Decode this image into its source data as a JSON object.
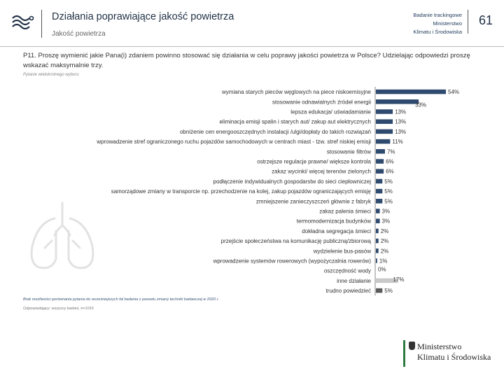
{
  "header": {
    "title": "Działania poprawiające jakość powietrza",
    "subtitle": "Jakość powietrza",
    "project_line1": "Badanie trackingowe",
    "project_line2": "Ministerstwo",
    "project_line3": "Klimatu i Środowiska",
    "page_number": "61"
  },
  "question": {
    "text": "P11. Proszę wymienić jakie Pana(i) zdaniem powinno stosować się działania w celu poprawy jakości powietrza w Polsce? Udzielając odpowiedzi proszę wskazać maksymalnie trzy.",
    "note": "Pytanie wielokrotnego wyboru"
  },
  "chart_data": {
    "type": "bar",
    "orientation": "horizontal",
    "categories": [
      "wymiana starych pieców węglowych na piece niskoemisyjne",
      "stosowanie odnawialnych źródeł energii",
      "lepsza edukacja/ uświadamianie",
      "eliminacja emisji spalin i starych aut/ zakup aut elektrycznych",
      "obniżenie cen energooszczędnych instalacji /ulgi/dopłaty do takich rozwiązań",
      "wprowadzenie stref ograniczonego ruchu pojazdów samochodowych w centrach miast - tzw. stref niskiej emisji",
      "stosowanie filtrów",
      "ostrzejsze regulacje prawne/ większe kontrola",
      "zakaz wycinki/ więcej terenów zielonych",
      "podłączenie indywidualnych gospodarstw do sieci ciepłowniczej",
      "samorządowe zmiany w transporcie np. przechodzenie na kolej, zakup pojazdów ograniczających emisję",
      "zmniejszenie zanieczyszczeń głównie z fabryk",
      "zakaz palenia śmieci",
      "termomodernizacja budynków",
      "dokładna segregacja śmieci",
      "przejście społeczeństwa na komunikację publiczną/zbiorową",
      "wydzielenie bus-pasów",
      "wprowadzenie systemów rowerowych (wypożyczalnia rowerów)",
      "oszczędność wody",
      "inne działanie",
      "trudno powiedzieć"
    ],
    "values": [
      54,
      33,
      13,
      13,
      13,
      11,
      7,
      6,
      6,
      5,
      5,
      5,
      3,
      3,
      2,
      2,
      2,
      1,
      0,
      17,
      5
    ],
    "value_labels": [
      "54%",
      "33%",
      "13%",
      "13%",
      "13%",
      "11%",
      "7%",
      "6%",
      "6%",
      "5%",
      "5%",
      "5%",
      "3%",
      "3%",
      "2%",
      "2%",
      "2%",
      "1%",
      "0%",
      "17%",
      "5%"
    ],
    "series_colors": {
      "main": "#2e4a6e",
      "other": "#c9c9c9",
      "hard_to_say": "#5a5a5a"
    },
    "xlim": [
      0,
      54
    ],
    "grid": false,
    "legend": "none"
  },
  "footer": {
    "note1": "Brak możliwości porównania pytania do wcześniejszych fal badania z powodu zmiany techniki badawczej w 2020 r.",
    "note2": "Odpowiadający: wszyscy badani, n=1015"
  },
  "ministry_logo": {
    "line1": "Ministerstwo",
    "line2": "Klimatu i Środowiska"
  }
}
